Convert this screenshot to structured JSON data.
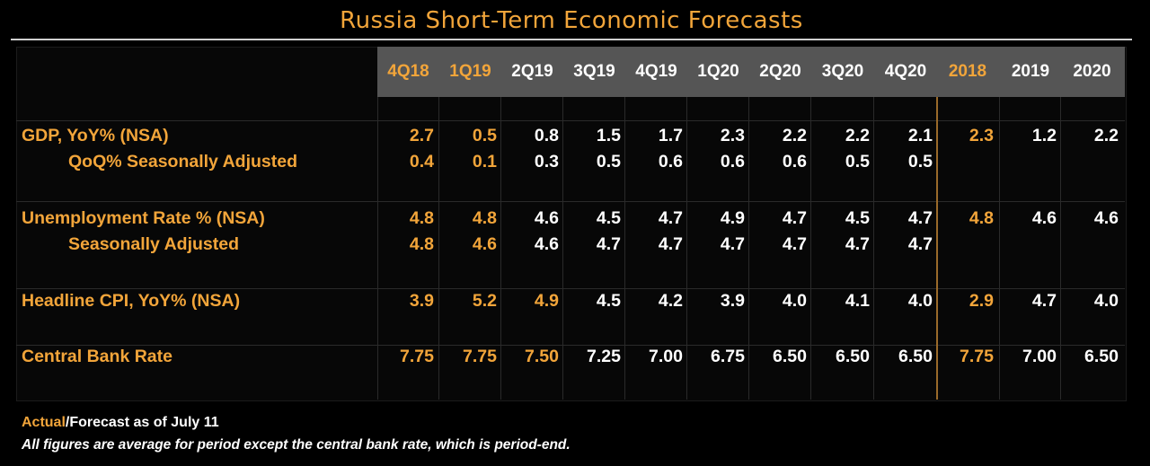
{
  "title": "Russia Short-Term Economic Forecasts",
  "colors": {
    "actual": "#F2A53A",
    "forecast": "#FFFFFF",
    "header_band": "#555555",
    "background": "#000000"
  },
  "chart_data": {
    "type": "table",
    "columns": [
      "4Q18",
      "1Q19",
      "2Q19",
      "3Q19",
      "4Q19",
      "1Q20",
      "2Q20",
      "3Q20",
      "4Q20",
      "2018",
      "2019",
      "2020"
    ],
    "actual_columns": [
      "4Q18",
      "1Q19"
    ],
    "rows": [
      {
        "label": "GDP, YoY% (NSA)",
        "values": [
          "2.7",
          "0.5",
          "0.8",
          "1.5",
          "1.7",
          "2.3",
          "2.2",
          "2.2",
          "2.1",
          "2.3",
          "1.2",
          "2.2"
        ],
        "actual_count": 2
      },
      {
        "label": "QoQ% Seasonally Adjusted",
        "values": [
          "0.4",
          "0.1",
          "0.3",
          "0.5",
          "0.6",
          "0.6",
          "0.6",
          "0.5",
          "0.5",
          "",
          "",
          ""
        ],
        "actual_count": 2
      },
      {
        "label": "Unemployment Rate % (NSA)",
        "values": [
          "4.8",
          "4.8",
          "4.6",
          "4.5",
          "4.7",
          "4.9",
          "4.7",
          "4.5",
          "4.7",
          "4.8",
          "4.6",
          "4.6"
        ],
        "actual_count": 2
      },
      {
        "label": "Seasonally Adjusted",
        "values": [
          "4.8",
          "4.6",
          "4.6",
          "4.7",
          "4.7",
          "4.7",
          "4.7",
          "4.7",
          "4.7",
          "",
          "",
          ""
        ],
        "actual_count": 2
      },
      {
        "label": "Headline CPI, YoY% (NSA)",
        "values": [
          "3.9",
          "5.2",
          "4.9",
          "4.5",
          "4.2",
          "3.9",
          "4.0",
          "4.1",
          "4.0",
          "2.9",
          "4.7",
          "4.0"
        ],
        "actual_count": 3
      },
      {
        "label": "Central Bank Rate",
        "values": [
          "7.75",
          "7.75",
          "7.50",
          "7.25",
          "7.00",
          "6.75",
          "6.50",
          "6.50",
          "6.50",
          "7.75",
          "7.00",
          "6.50"
        ],
        "actual_count": 3
      }
    ]
  },
  "footnote": {
    "actual_word": "Actual",
    "rest": "/Forecast as of July 11",
    "note": "All figures are average for period except the central bank rate, which is period-end."
  }
}
